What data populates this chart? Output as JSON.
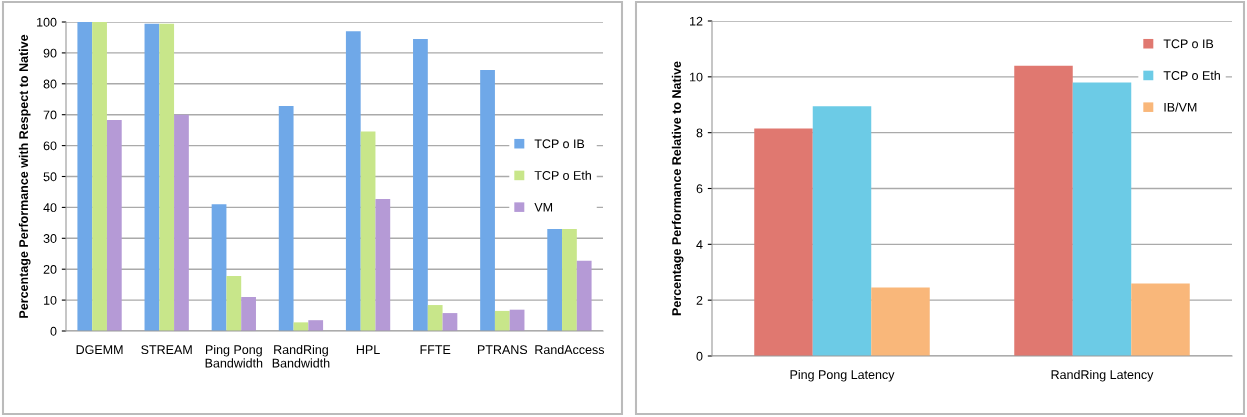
{
  "chart_data": [
    {
      "type": "bar",
      "ylabel": "Percentage Performance with Respect to Native",
      "categories": [
        "DGEMM",
        "STREAM",
        "Ping Pong\nBandwidth",
        "RandRing\nBandwidth",
        "HPL",
        "FFTE",
        "PTRANS",
        "RandAccess"
      ],
      "series": [
        {
          "name": "TCP o IB",
          "color": "#6fa8e8",
          "values": [
            100,
            99.4,
            41,
            72.8,
            97,
            94.5,
            84.5,
            33
          ]
        },
        {
          "name": "TCP o Eth",
          "color": "#c8e68a",
          "values": [
            100,
            99.4,
            17.8,
            2.8,
            64.6,
            8.4,
            6.5,
            33
          ]
        },
        {
          "name": "VM",
          "color": "#b59ad6",
          "values": [
            68.3,
            70,
            11,
            3.5,
            42.7,
            5.8,
            6.9,
            22.7
          ]
        }
      ],
      "ylim": [
        0,
        100
      ],
      "yticks": [
        0,
        10,
        20,
        30,
        40,
        50,
        60,
        70,
        80,
        90,
        100
      ],
      "grid": "y",
      "legend": "right"
    },
    {
      "type": "bar",
      "ylabel": "Percentage Performance Relative to Native",
      "categories": [
        "Ping Pong Latency",
        "RandRing Latency"
      ],
      "series": [
        {
          "name": "TCP o IB",
          "color": "#e07870",
          "values": [
            8.15,
            10.4
          ]
        },
        {
          "name": "TCP o Eth",
          "color": "#6ccbe6",
          "values": [
            8.95,
            9.8
          ]
        },
        {
          "name": "IB/VM",
          "color": "#f9b77a",
          "values": [
            2.45,
            2.6
          ]
        }
      ],
      "ylim": [
        0,
        12
      ],
      "yticks": [
        0,
        2,
        4,
        6,
        8,
        10,
        12
      ],
      "grid": "y",
      "legend": "top right"
    }
  ]
}
